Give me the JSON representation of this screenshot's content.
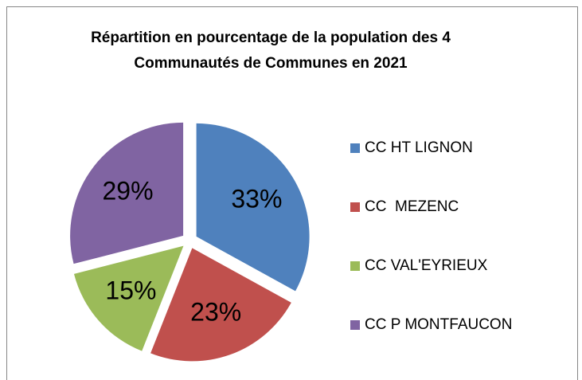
{
  "chart_data": {
    "type": "pie",
    "title": [
      "Répartition en pourcentage de la population des 4",
      "Communautés de Communes en 2021"
    ],
    "categories": [
      "CC HT LIGNON",
      "CC  MEZENC",
      "CC VAL'EYRIEUX",
      "CC P MONTFAUCON"
    ],
    "values": [
      33,
      23,
      15,
      29
    ],
    "value_labels": [
      "33%",
      "23%",
      "15%",
      "29%"
    ],
    "colors": [
      "#4f81bd",
      "#c0504d",
      "#9bbb59",
      "#8064a2"
    ],
    "legend": "right"
  }
}
